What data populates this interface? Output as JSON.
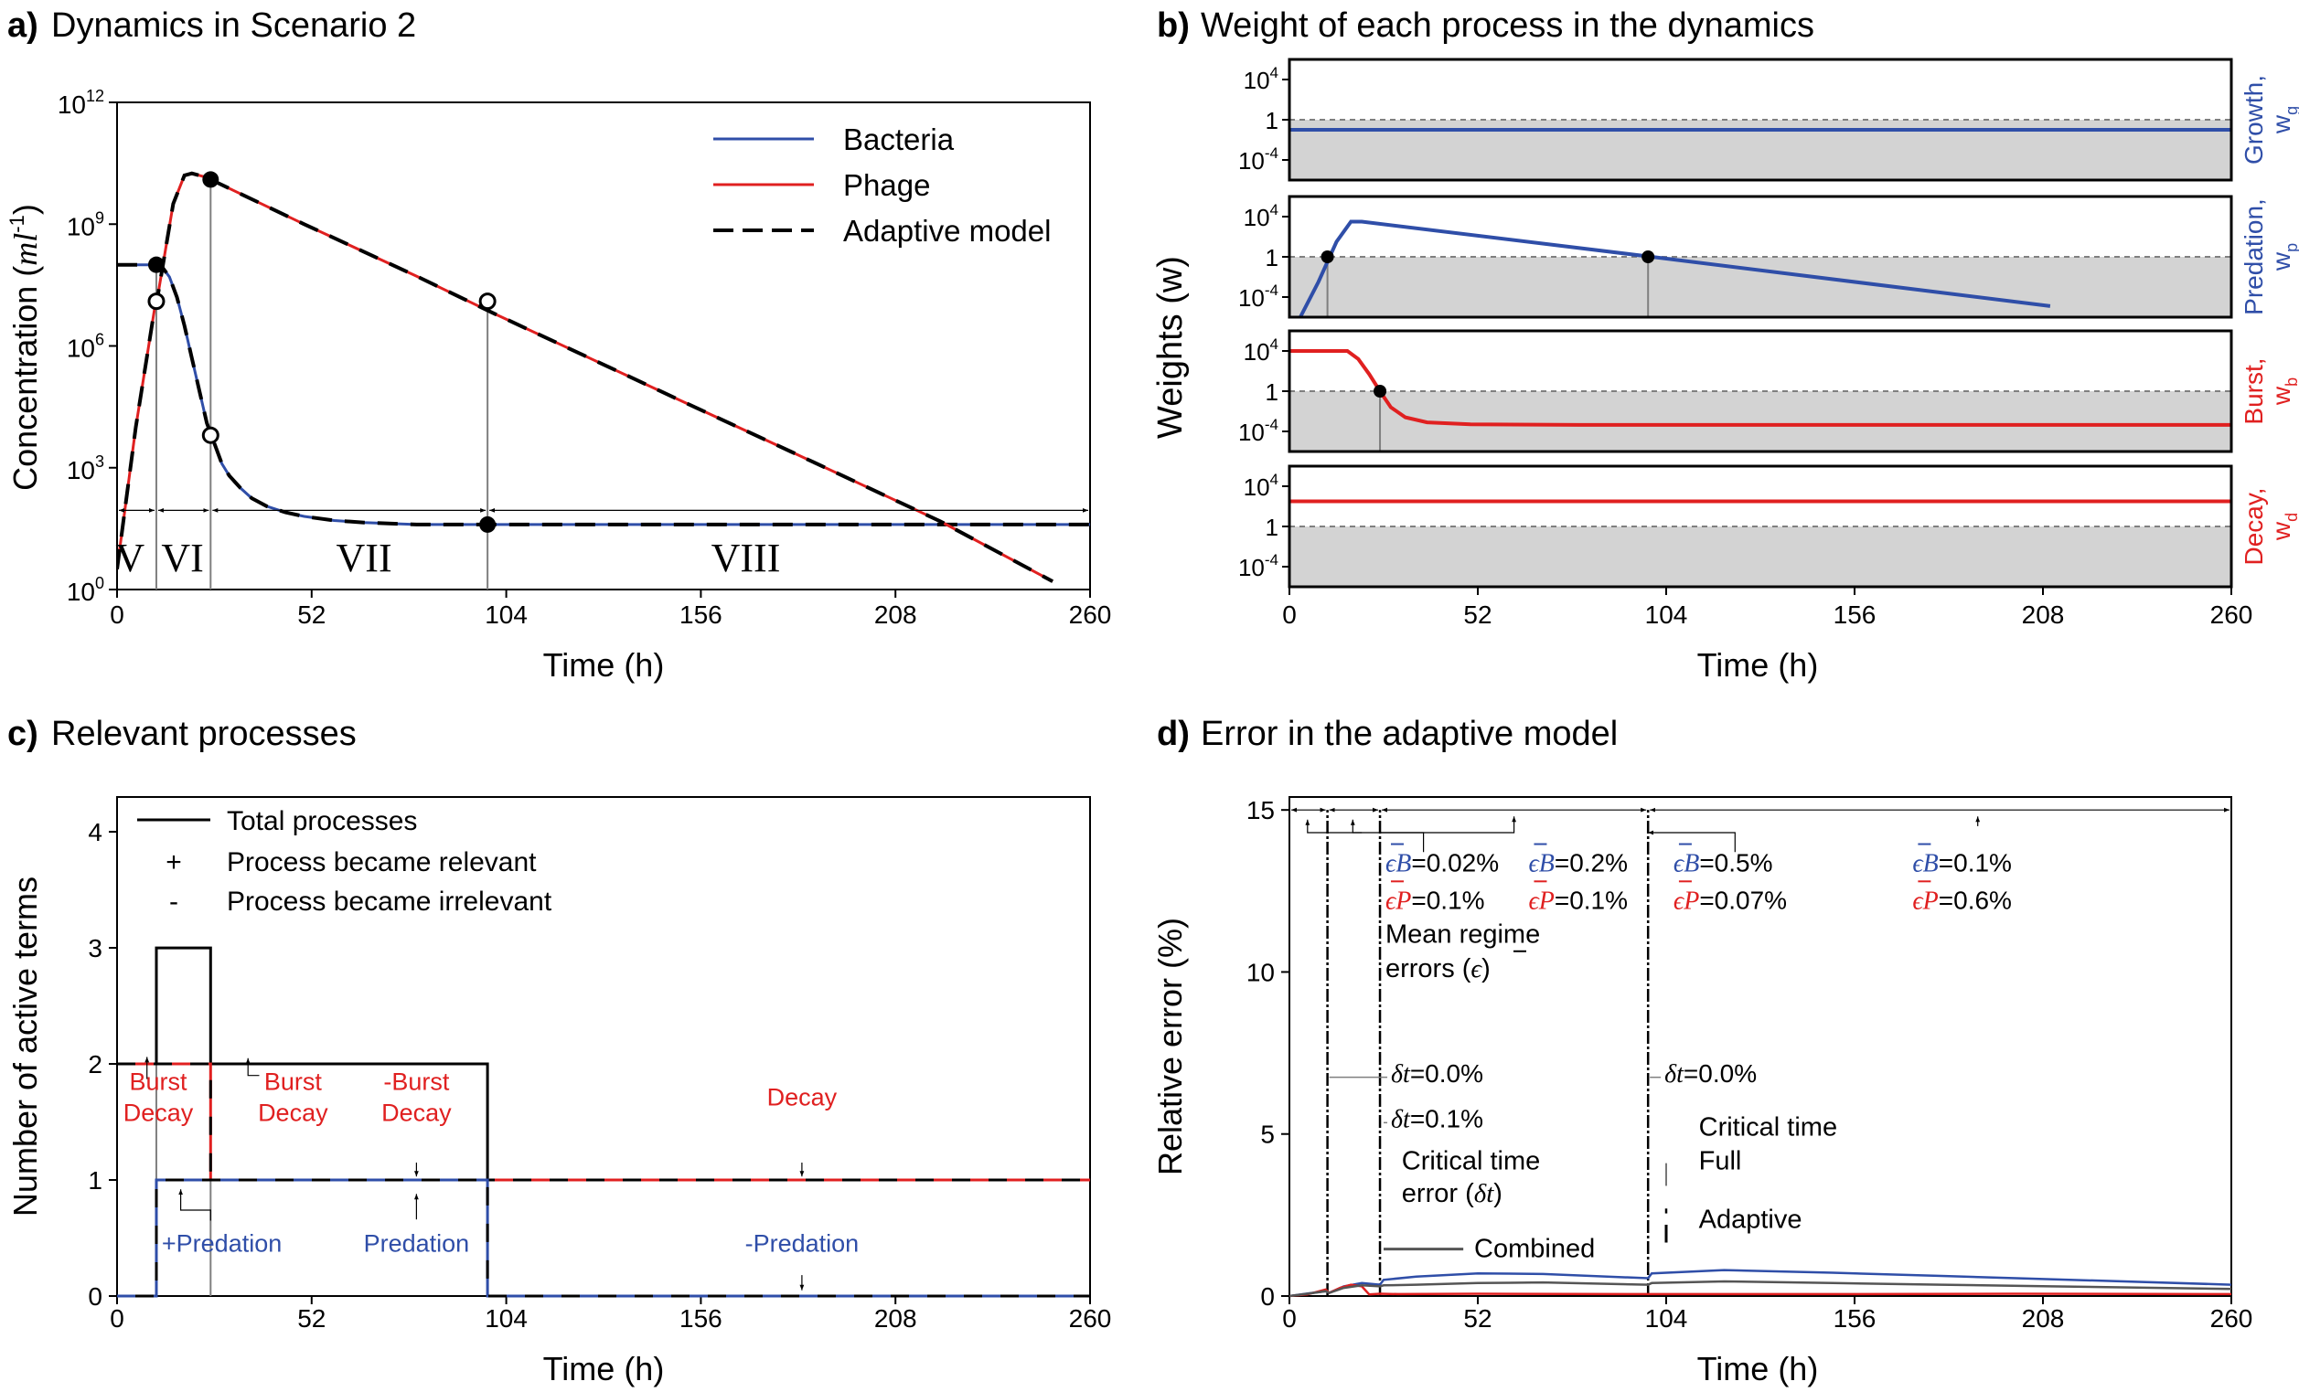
{
  "colors": {
    "bacteria": "#2f4ea8",
    "phage": "#e02020",
    "adaptive": "#000000",
    "irrelevant_band": "#d3d3d3",
    "guide": "#7f7f7f",
    "threshold": "#808080"
  },
  "panel_a": {
    "label": "a)",
    "title": "Dynamics in Scenario 2",
    "xlabel": "Time (h)",
    "ylabel": "Concentration (",
    "ylabel_unit": "ml",
    "ylabel_exp": "-1",
    "ylabel_close": ")",
    "legend": [
      "Bacteria",
      "Phage",
      "Adaptive model"
    ],
    "regimes": [
      "V",
      "VI",
      "VII",
      "VIII"
    ],
    "chart_data": {
      "type": "line",
      "x_ticks": [
        "0",
        "52",
        "104",
        "156",
        "208",
        "260"
      ],
      "y_ticks": [
        {
          "base": "10",
          "exp": "0"
        },
        {
          "base": "10",
          "exp": "3"
        },
        {
          "base": "10",
          "exp": "6"
        },
        {
          "base": "10",
          "exp": "9"
        },
        {
          "base": "10",
          "exp": "12"
        }
      ],
      "xlim": [
        0,
        260
      ],
      "ylim_log10": [
        0,
        12
      ],
      "series": [
        {
          "name": "Bacteria",
          "x": [
            0,
            5,
            9,
            11,
            12,
            14,
            16,
            18,
            20,
            22,
            24,
            26,
            28,
            30,
            33,
            36,
            40,
            45,
            50,
            58,
            66,
            80,
            100,
            130,
            160,
            200,
            260
          ],
          "log10_y": [
            8.0,
            8.0,
            8.0,
            8.0,
            7.95,
            7.7,
            7.2,
            6.5,
            5.7,
            4.9,
            4.1,
            3.6,
            3.1,
            2.8,
            2.5,
            2.25,
            2.05,
            1.9,
            1.8,
            1.7,
            1.65,
            1.6,
            1.6,
            1.6,
            1.6,
            1.6,
            1.6
          ]
        },
        {
          "name": "Phage",
          "x": [
            0,
            5,
            10,
            11,
            15,
            18,
            20,
            22,
            24,
            25,
            30,
            50,
            80,
            100,
            120,
            150,
            180,
            200,
            220,
            250
          ],
          "log10_y": [
            0.5,
            4.0,
            6.9,
            7.3,
            9.5,
            10.2,
            10.25,
            10.2,
            10.15,
            10.1,
            9.88,
            9.0,
            7.72,
            6.83,
            5.97,
            4.68,
            3.4,
            2.54,
            1.68,
            0.2
          ]
        }
      ],
      "solid_markers": [
        {
          "x": 10.5,
          "log10_y": 8.0
        },
        {
          "x": 25,
          "log10_y": 10.1
        },
        {
          "x": 99,
          "log10_y": 1.6
        }
      ],
      "open_markers": [
        {
          "x": 10.5,
          "log10_y": 7.1
        },
        {
          "x": 25,
          "log10_y": 3.8
        },
        {
          "x": 99,
          "log10_y": 7.1
        }
      ]
    }
  },
  "panel_b": {
    "label": "b)",
    "title": "Weight of each process in the dynamics",
    "xlabel": "Time (h)",
    "ylabel": "Weights (w)",
    "chart_data": {
      "type": "line",
      "x_ticks": [
        "0",
        "52",
        "104",
        "156",
        "208",
        "260"
      ],
      "xlim": [
        0,
        260
      ],
      "ylim_log10": [
        -6,
        6
      ],
      "threshold_log10": 0,
      "y_tick_labels": [
        {
          "base": "10",
          "exp": "4"
        },
        {
          "base": "1",
          "exp": ""
        },
        {
          "base": "10",
          "exp": "-4"
        }
      ],
      "subplots": [
        {
          "name": "Growth,",
          "sub_base": "w",
          "sub_idx": "g",
          "color": "bacteria",
          "x": [
            0,
            260
          ],
          "log10_y": [
            -1.0,
            -1.0
          ],
          "markers": []
        },
        {
          "name": "Predation,",
          "sub_base": "w",
          "sub_idx": "p",
          "color": "bacteria",
          "x": [
            3,
            8,
            13,
            17,
            20,
            100,
            210
          ],
          "log10_y": [
            -6,
            -2.5,
            1.5,
            3.5,
            3.5,
            0,
            -4.9
          ],
          "markers": [
            {
              "x": 10.5,
              "log10_y": 0
            },
            {
              "x": 99,
              "log10_y": 0
            }
          ]
        },
        {
          "name": "Burst,",
          "sub_base": "w",
          "sub_idx": "b",
          "color": "phage",
          "x": [
            0,
            16,
            19,
            22,
            25,
            28,
            32,
            38,
            50,
            80,
            260
          ],
          "log10_y": [
            4,
            4,
            3.2,
            1.7,
            0,
            -1.6,
            -2.6,
            -3.1,
            -3.3,
            -3.35,
            -3.35
          ],
          "markers": [
            {
              "x": 25,
              "log10_y": 0
            }
          ]
        },
        {
          "name": "Decay,",
          "sub_base": "w",
          "sub_idx": "d",
          "color": "phage",
          "x": [
            0,
            260
          ],
          "log10_y": [
            2.5,
            2.5
          ],
          "markers": []
        }
      ]
    }
  },
  "panel_c": {
    "label": "c)",
    "title": "Relevant processes",
    "xlabel": "Time (h)",
    "ylabel": "Number of active terms",
    "legend": [
      "Total processes",
      "Process became relevant",
      "Process became irrelevant"
    ],
    "legend_symbols": [
      "+",
      "-"
    ],
    "annotations": [
      {
        "lines": [
          "Burst",
          "Decay"
        ],
        "color": "phage"
      },
      {
        "lines": [
          "Burst",
          "Decay"
        ],
        "color": "phage"
      },
      {
        "lines": [
          "-Burst",
          "Decay"
        ],
        "color": "phage"
      },
      {
        "lines": [
          "Decay"
        ],
        "color": "phage"
      },
      {
        "lines": [
          "+Predation"
        ],
        "color": "bacteria"
      },
      {
        "lines": [
          "Predation"
        ],
        "color": "bacteria"
      },
      {
        "lines": [
          "-Predation"
        ],
        "color": "bacteria"
      }
    ],
    "chart_data": {
      "type": "line",
      "x_ticks": [
        "0",
        "52",
        "104",
        "156",
        "208",
        "260"
      ],
      "y_ticks": [
        "0",
        "1",
        "2",
        "3",
        "4"
      ],
      "xlim": [
        0,
        260
      ],
      "ylim": [
        0,
        4.3
      ],
      "series": [
        {
          "name": "Total processes",
          "x": [
            0,
            10.5,
            10.5,
            25,
            25,
            99,
            99,
            260
          ],
          "y": [
            2,
            2,
            3,
            3,
            2,
            2,
            1,
            1
          ]
        },
        {
          "name": "Phage",
          "x": [
            0,
            25,
            25,
            260
          ],
          "y": [
            2,
            2,
            1,
            1
          ]
        },
        {
          "name": "Bacteria",
          "x": [
            0,
            10.5,
            10.5,
            99,
            99,
            260
          ],
          "y": [
            0,
            0,
            1,
            1,
            0,
            0
          ]
        }
      ]
    }
  },
  "panel_d": {
    "label": "d)",
    "title": "Error in the adaptive model",
    "xlabel": "Time (h)",
    "ylabel": "Relative error (%)",
    "mean_errors": [
      {
        "eb": "=0.02%",
        "ep": "=0.1%"
      },
      {
        "eb": "=0.2%",
        "ep": "=0.1%"
      },
      {
        "eb": "=0.5%",
        "ep": "=0.07%"
      },
      {
        "eb": "=0.1%",
        "ep": "=0.6%"
      }
    ],
    "eps_symbol": "ϵ",
    "B_symbol": "B",
    "P_symbol": "P",
    "dt_symbol": "δt",
    "critical_errors": [
      "=0.0%",
      "=0.1%",
      "=0.0%"
    ],
    "labels": {
      "mean_regime": [
        "Mean regime",
        "errors ("
      ],
      "mean_regime_close": ")",
      "crit_error": [
        "Critical time",
        "error ("
      ],
      "crit_error_close": ")",
      "crit_time": "Critical time",
      "full": "Full",
      "adaptive": "Adaptive",
      "combined": "Combined"
    },
    "chart_data": {
      "type": "line",
      "x_ticks": [
        "0",
        "52",
        "104",
        "156",
        "208",
        "260"
      ],
      "y_ticks": [
        "0",
        "5",
        "10",
        "15"
      ],
      "xlim": [
        0,
        260
      ],
      "ylim": [
        0,
        15.4
      ],
      "critical_times": [
        10.5,
        25,
        99
      ],
      "series": [
        {
          "name": "Bacteria",
          "x": [
            0,
            5,
            10,
            11,
            15,
            20,
            25,
            26,
            35,
            52,
            70,
            99,
            100,
            120,
            150,
            180,
            210,
            260
          ],
          "y": [
            0,
            0.08,
            0.15,
            0.1,
            0.3,
            0.4,
            0.35,
            0.5,
            0.6,
            0.7,
            0.68,
            0.55,
            0.7,
            0.8,
            0.72,
            0.62,
            0.52,
            0.35
          ]
        },
        {
          "name": "Phage",
          "x": [
            0,
            5,
            10,
            11,
            14,
            17,
            20,
            22,
            25,
            30,
            52,
            99,
            100,
            150,
            200,
            260
          ],
          "y": [
            0,
            0.05,
            0.2,
            0.1,
            0.25,
            0.35,
            0.3,
            0.05,
            0.07,
            0.06,
            0.07,
            0.06,
            0.06,
            0.06,
            0.07,
            0.06
          ]
        },
        {
          "name": "Combined",
          "x": [
            0,
            5,
            10,
            11,
            15,
            20,
            25,
            26,
            35,
            52,
            70,
            99,
            100,
            120,
            150,
            180,
            210,
            260
          ],
          "y": [
            0,
            0.07,
            0.15,
            0.1,
            0.25,
            0.33,
            0.3,
            0.33,
            0.35,
            0.4,
            0.42,
            0.35,
            0.4,
            0.45,
            0.4,
            0.35,
            0.3,
            0.22
          ]
        }
      ]
    }
  }
}
